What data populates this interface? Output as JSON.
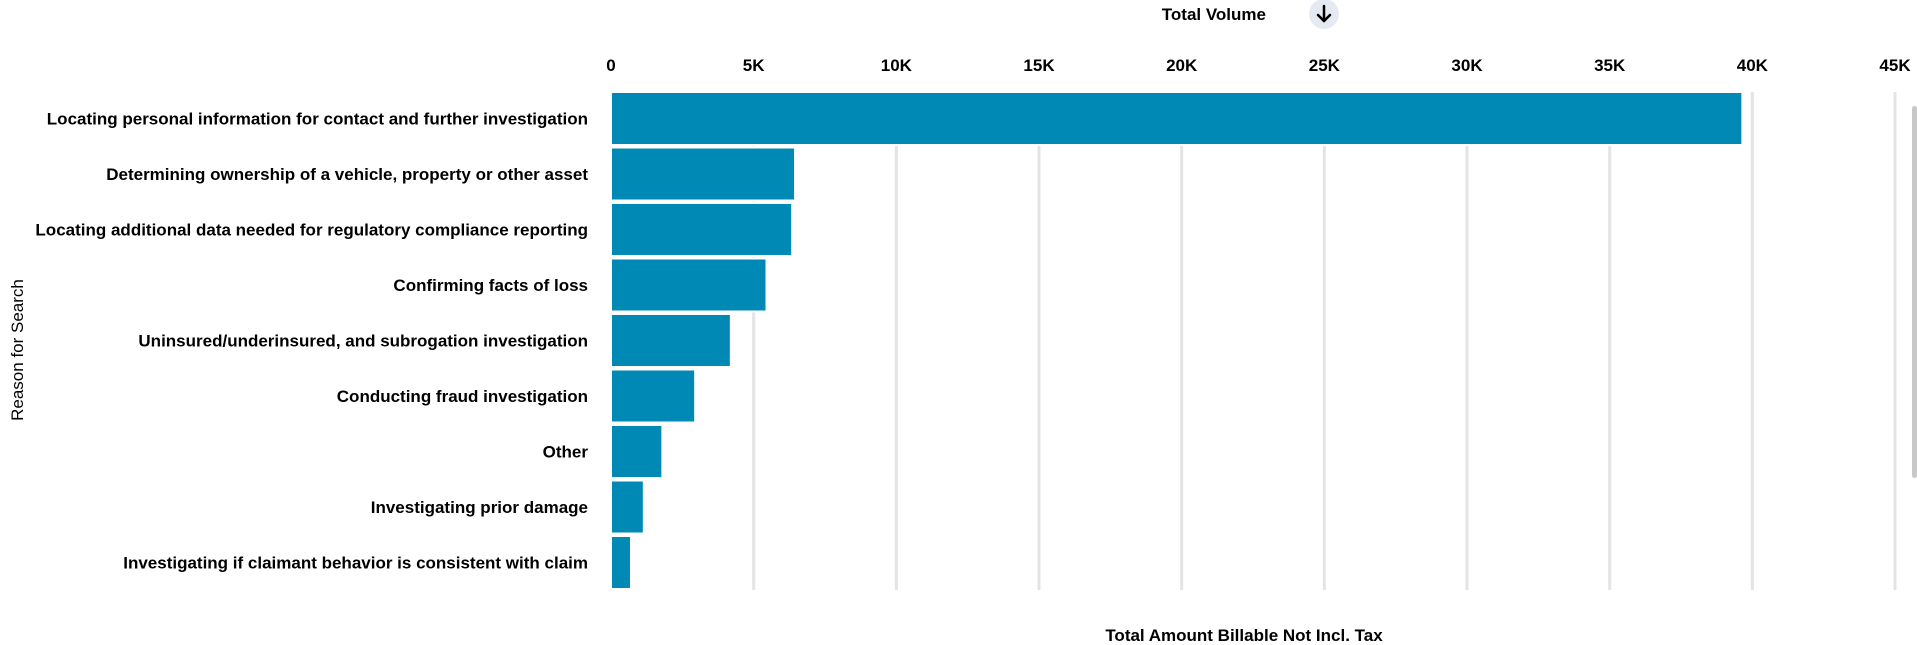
{
  "header": {
    "sort_label": "Total Volume",
    "sort_icon": "arrow-down-icon"
  },
  "colors": {
    "bar": "#0089b5",
    "gridline": "#e4e4e4",
    "sort_button_bg": "#e4e9f2"
  },
  "chart_data": {
    "type": "bar",
    "orientation": "horizontal",
    "categories": [
      "Locating personal information for contact and further investigation",
      "Determining ownership of a vehicle, property or other asset",
      "Locating additional data needed for regulatory compliance reporting",
      "Confirming facts of loss",
      "Uninsured/underinsured, and subrogation investigation",
      "Conducting fraud investigation",
      "Other",
      "Investigating prior damage",
      "Investigating if claimant behavior is consistent with claim"
    ],
    "values": [
      39650,
      6450,
      6350,
      5450,
      4200,
      2950,
      1800,
      1150,
      700
    ],
    "xlabel": "Total Amount Billable Not Incl. Tax",
    "ylabel": "Reason for Search",
    "xlim": [
      0,
      45000
    ],
    "ticks": [
      0,
      5000,
      10000,
      15000,
      20000,
      25000,
      30000,
      35000,
      40000,
      45000
    ],
    "tick_labels": [
      "0",
      "5K",
      "10K",
      "15K",
      "20K",
      "25K",
      "30K",
      "35K",
      "40K",
      "45K"
    ],
    "x_axis_position": "top",
    "grid": true,
    "legend": "none"
  }
}
